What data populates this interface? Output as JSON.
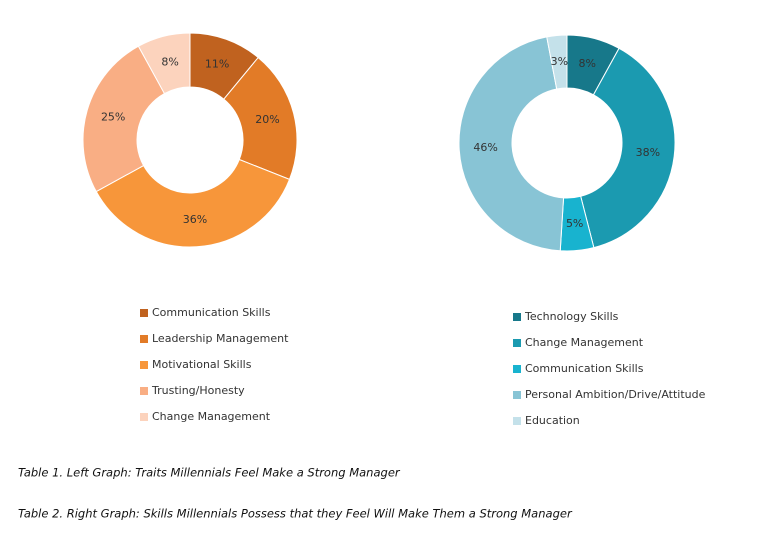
{
  "chart_data": [
    {
      "type": "donut",
      "categories": [
        "Communication Skills",
        "Leadership Management",
        "Motivational Skills",
        "Trusting/Honesty",
        "Change Management"
      ],
      "values": [
        11,
        20,
        36,
        25,
        8
      ],
      "value_labels": [
        "11%",
        "20%",
        "36%",
        "25%",
        "8%"
      ],
      "colors": [
        "#c0621f",
        "#e27b27",
        "#f7963a",
        "#f9ae84",
        "#fcd3bd"
      ]
    },
    {
      "type": "donut",
      "categories": [
        "Technology Skills",
        "Change Management",
        "Communication Skills",
        "Personal Ambition/Drive/Attitude",
        "Education"
      ],
      "values": [
        8,
        38,
        5,
        46,
        3
      ],
      "value_labels": [
        "8%",
        "38%",
        "5%",
        "46%",
        "3%"
      ],
      "colors": [
        "#17788a",
        "#1b9ab0",
        "#18b3cf",
        "#88c4d5",
        "#c4e1ea"
      ]
    }
  ],
  "captions": [
    "Table 1. Left Graph: Traits Millennials Feel Make a Strong Manager",
    "Table 2. Right Graph: Skills Millennials Possess that they Feel Will Make Them a Strong Manager"
  ]
}
